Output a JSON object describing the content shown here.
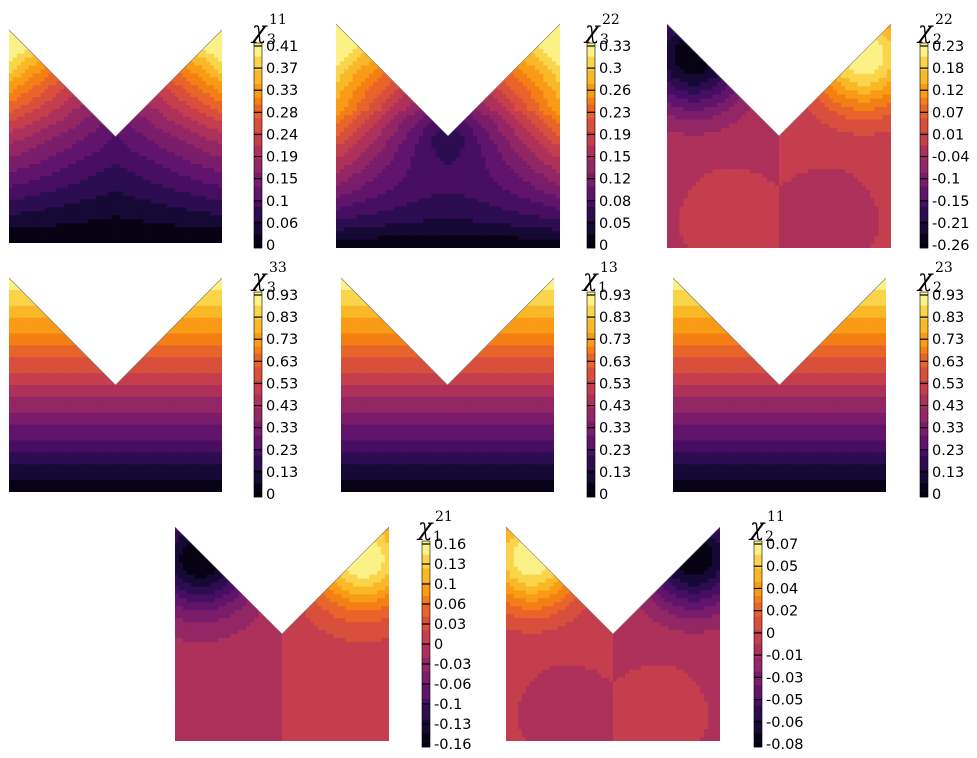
{
  "chart_data": [
    {
      "type": "heatmap",
      "field": "u_increasing",
      "label": {
        "sym": "χ",
        "sub": "3",
        "sup": "11"
      },
      "colorbar_ticks": [
        "0.41",
        "0.37",
        "0.33",
        "0.28",
        "0.24",
        "0.19",
        "0.15",
        "0.1",
        "0.06",
        "0"
      ]
    },
    {
      "type": "heatmap",
      "field": "v_corner_radial",
      "label": {
        "sym": "χ",
        "sub": "3",
        "sup": "22"
      },
      "colorbar_ticks": [
        "0.33",
        "0.3",
        "0.26",
        "0.23",
        "0.19",
        "0.15",
        "0.12",
        "0.08",
        "0.05",
        "0"
      ]
    },
    {
      "type": "heatmap",
      "field": "anti_left_dark_two_blobs",
      "label": {
        "sym": "χ",
        "sub": "2",
        "sup": "22"
      },
      "colorbar_ticks": [
        "0.23",
        "0.18",
        "0.12",
        "0.07",
        "0.01",
        "-0.04",
        "-0.1",
        "-0.15",
        "-0.21",
        "-0.26"
      ]
    },
    {
      "type": "heatmap",
      "field": "linear_y",
      "label": {
        "sym": "χ",
        "sub": "3",
        "sup": "33"
      },
      "colorbar_ticks": [
        "0.93",
        "0.83",
        "0.73",
        "0.63",
        "0.53",
        "0.43",
        "0.33",
        "0.23",
        "0.13",
        "0"
      ]
    },
    {
      "type": "heatmap",
      "field": "linear_y",
      "label": {
        "sym": "χ",
        "sub": "1",
        "sup": "13"
      },
      "colorbar_ticks": [
        "0.93",
        "0.83",
        "0.73",
        "0.63",
        "0.53",
        "0.43",
        "0.33",
        "0.23",
        "0.13",
        "0"
      ]
    },
    {
      "type": "heatmap",
      "field": "linear_y",
      "label": {
        "sym": "χ",
        "sub": "2",
        "sup": "23"
      },
      "colorbar_ticks": [
        "0.93",
        "0.83",
        "0.73",
        "0.63",
        "0.53",
        "0.43",
        "0.33",
        "0.23",
        "0.13",
        "0"
      ]
    },
    {
      "type": "heatmap",
      "field": "anti_left_dark",
      "label": {
        "sym": "χ",
        "sub": "1",
        "sup": "21"
      },
      "colorbar_ticks": [
        "0.16",
        "0.13",
        "0.1",
        "0.06",
        "0.03",
        "0",
        "-0.03",
        "-0.06",
        "-0.1",
        "-0.13",
        "-0.16"
      ]
    },
    {
      "type": "heatmap",
      "field": "anti_right_dark_two_blobs",
      "label": {
        "sym": "χ",
        "sub": "2",
        "sup": "11"
      },
      "colorbar_ticks": [
        "0.07",
        "0.05",
        "0.04",
        "0.02",
        "0",
        "-0.01",
        "-0.03",
        "-0.05",
        "-0.06",
        "-0.08"
      ]
    }
  ]
}
